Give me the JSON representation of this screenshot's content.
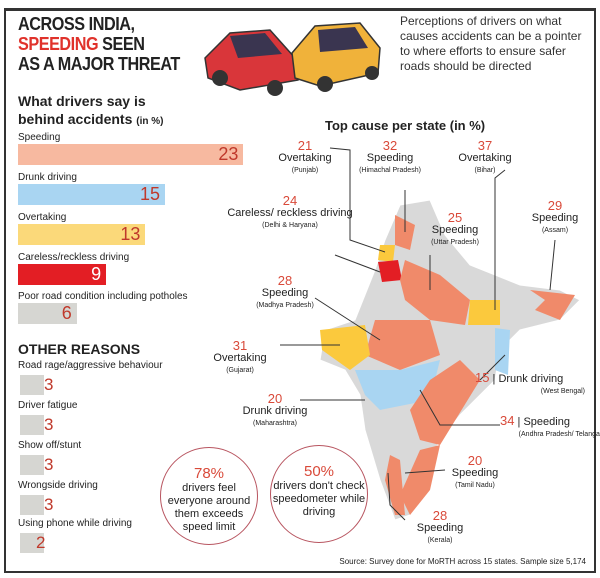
{
  "headline": {
    "line1": "ACROSS INDIA,",
    "highlight": "SPEEDING",
    "line2_rest": " SEEN",
    "line3": "AS A MAJOR THREAT"
  },
  "intro": "Perceptions of drivers on what causes accidents can be a pointer to where efforts to ensure safer roads should be directed",
  "subtitle": {
    "line1": "What drivers say is",
    "line2": "behind accidents",
    "unit": "(in %)"
  },
  "chart_data": {
    "type": "bar",
    "title": "What drivers say is behind accidents (in %)",
    "categories": [
      "Speeding",
      "Drunk driving",
      "Overtaking",
      "Careless/reckless driving",
      "Poor road condition including potholes"
    ],
    "values": [
      23,
      15,
      13,
      9,
      6
    ],
    "colors": [
      "#f7b9a0",
      "#a9d5f2",
      "#fbd97a",
      "#e31e24",
      "#d6d6d2"
    ],
    "other_reasons": {
      "title": "OTHER REASONS",
      "categories": [
        "Road rage/aggressive behaviour",
        "Driver fatigue",
        "Show off/stunt",
        "Wrongside driving",
        "Using phone while driving"
      ],
      "values": [
        3,
        3,
        3,
        3,
        2
      ]
    }
  },
  "map": {
    "title": "Top cause per state (in %)",
    "states": [
      {
        "n": "21",
        "cause": "Overtaking",
        "state": "(Punjab)"
      },
      {
        "n": "32",
        "cause": "Speeding",
        "state": "(Himachal Pradesh)"
      },
      {
        "n": "37",
        "cause": "Overtaking",
        "state": "(Bihar)"
      },
      {
        "n": "29",
        "cause": "Speeding",
        "state": "(Assam)"
      },
      {
        "n": "24",
        "cause": "Careless/ reckless driving",
        "state": "(Delhi & Haryana)"
      },
      {
        "n": "25",
        "cause": "Speeding",
        "state": "(Uttar Pradesh)"
      },
      {
        "n": "28",
        "cause": "Speeding",
        "state": "(Madhya Pradesh)"
      },
      {
        "n": "31",
        "cause": "Overtaking",
        "state": "(Gujarat)"
      },
      {
        "n": "15",
        "cause": "Drunk driving",
        "state": "(West Bengal)"
      },
      {
        "n": "20",
        "cause": "Drunk driving",
        "state": "(Maharashtra)"
      },
      {
        "n": "34",
        "cause": "Speeding",
        "state": "(Andhra Pradesh/ Telangana)"
      },
      {
        "n": "20",
        "cause": "Speeding",
        "state": "(Tamil Nadu)"
      },
      {
        "n": "28",
        "cause": "Speeding",
        "state": "(Kerala)"
      }
    ]
  },
  "callouts": [
    {
      "pct": "78%",
      "text": "drivers feel everyone around them exceeds speed limit"
    },
    {
      "pct": "50%",
      "text": "drivers don't check speedometer while driving"
    }
  ],
  "source": "Source: Survey done for MoRTH across 15 states. Sample size 5,174"
}
